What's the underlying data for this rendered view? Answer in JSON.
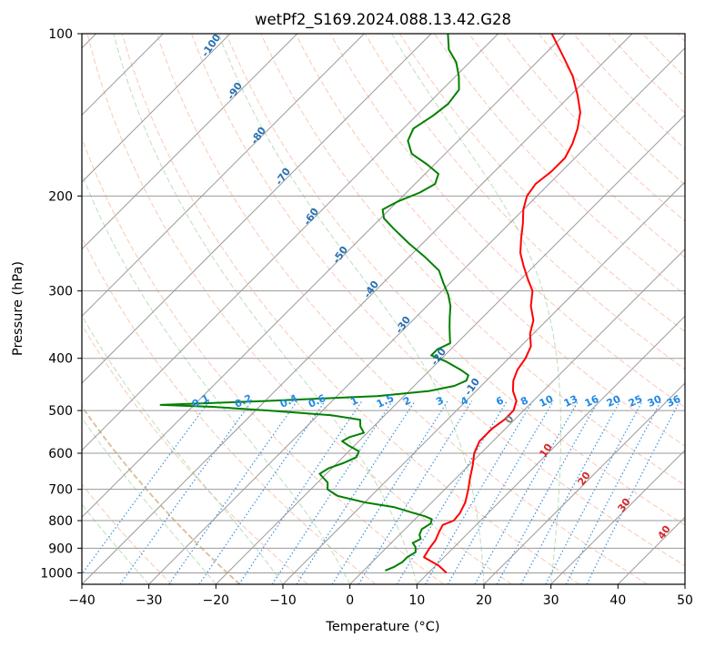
{
  "chart_data": {
    "type": "line",
    "title": "wetPf2_S169.2024.088.13.42.G28",
    "xlabel": "Temperature (°C)",
    "ylabel": "Pressure (hPa)",
    "xlim": [
      -40,
      50
    ],
    "ylim": [
      1050,
      100
    ],
    "y_scale": "log",
    "grid": true,
    "x_ticks": [
      -40,
      -30,
      -20,
      -10,
      0,
      10,
      20,
      30,
      40,
      50
    ],
    "y_ticks": [
      100,
      200,
      300,
      400,
      500,
      600,
      700,
      800,
      900,
      1000
    ],
    "skew_angle_deg": 45,
    "series": [
      {
        "color": "#ff0000",
        "points": [
          [
            12.7,
            1000
          ],
          [
            10.5,
            970
          ],
          [
            7.0,
            935
          ],
          [
            6.5,
            900
          ],
          [
            6.2,
            870
          ],
          [
            5.5,
            840
          ],
          [
            5.0,
            815
          ],
          [
            6.0,
            800
          ],
          [
            5.8,
            775
          ],
          [
            5.0,
            740
          ],
          [
            3.5,
            700
          ],
          [
            2.2,
            670
          ],
          [
            0.5,
            630
          ],
          [
            -1.0,
            600
          ],
          [
            -2.0,
            570
          ],
          [
            -2.0,
            540
          ],
          [
            -1.5,
            520
          ],
          [
            -1.5,
            500
          ],
          [
            -2.5,
            480
          ],
          [
            -4.5,
            460
          ],
          [
            -6.0,
            440
          ],
          [
            -7.0,
            420
          ],
          [
            -7.5,
            400
          ],
          [
            -8.5,
            380
          ],
          [
            -10.5,
            360
          ],
          [
            -12.0,
            340
          ],
          [
            -14.5,
            320
          ],
          [
            -16.5,
            300
          ],
          [
            -19.0,
            285
          ],
          [
            -21.5,
            270
          ],
          [
            -24.0,
            255
          ],
          [
            -26.0,
            240
          ],
          [
            -28.0,
            225
          ],
          [
            -30.0,
            212
          ],
          [
            -31.5,
            200
          ],
          [
            -32.0,
            190
          ],
          [
            -31.5,
            180
          ],
          [
            -31.5,
            170
          ],
          [
            -32.5,
            160
          ],
          [
            -34.0,
            150
          ],
          [
            -36.0,
            140
          ],
          [
            -39.0,
            130
          ],
          [
            -42.5,
            120
          ],
          [
            -47.0,
            110
          ],
          [
            -52.0,
            100
          ]
        ]
      },
      {
        "color": "#008000",
        "points": [
          [
            3.2,
            990
          ],
          [
            4.0,
            975
          ],
          [
            4.5,
            955
          ],
          [
            4.5,
            935
          ],
          [
            5.0,
            915
          ],
          [
            4.2,
            895
          ],
          [
            3.2,
            880
          ],
          [
            3.8,
            865
          ],
          [
            3.0,
            850
          ],
          [
            2.5,
            830
          ],
          [
            3.0,
            810
          ],
          [
            2.5,
            795
          ],
          [
            1.0,
            785
          ],
          [
            -2.0,
            770
          ],
          [
            -5.0,
            755
          ],
          [
            -10.0,
            740
          ],
          [
            -15.0,
            720
          ],
          [
            -17.5,
            700
          ],
          [
            -18.5,
            680
          ],
          [
            -20.0,
            665
          ],
          [
            -21.0,
            655
          ],
          [
            -20.5,
            640
          ],
          [
            -19.0,
            625
          ],
          [
            -18.0,
            610
          ],
          [
            -18.5,
            595
          ],
          [
            -21.0,
            580
          ],
          [
            -22.5,
            570
          ],
          [
            -22.0,
            560
          ],
          [
            -20.5,
            550
          ],
          [
            -22.0,
            535
          ],
          [
            -23.0,
            520
          ],
          [
            -28.0,
            510
          ],
          [
            -38.0,
            500
          ],
          [
            -47.0,
            492
          ],
          [
            -55.0,
            488
          ],
          [
            -40.0,
            480
          ],
          [
            -24.0,
            470
          ],
          [
            -17.0,
            460
          ],
          [
            -14.0,
            450
          ],
          [
            -13.0,
            440
          ],
          [
            -13.5,
            430
          ],
          [
            -15.5,
            420
          ],
          [
            -19.0,
            405
          ],
          [
            -22.0,
            395
          ],
          [
            -22.0,
            385
          ],
          [
            -21.0,
            375
          ],
          [
            -22.0,
            365
          ],
          [
            -23.5,
            350
          ],
          [
            -25.0,
            335
          ],
          [
            -26.5,
            320
          ],
          [
            -28.5,
            305
          ],
          [
            -31.0,
            290
          ],
          [
            -33.5,
            275
          ],
          [
            -37.5,
            260
          ],
          [
            -42.0,
            245
          ],
          [
            -46.5,
            230
          ],
          [
            -49.5,
            220
          ],
          [
            -51.0,
            212
          ],
          [
            -50.0,
            205
          ],
          [
            -48.0,
            197
          ],
          [
            -47.0,
            190
          ],
          [
            -48.0,
            182
          ],
          [
            -51.0,
            175
          ],
          [
            -55.0,
            167
          ],
          [
            -57.5,
            158
          ],
          [
            -58.5,
            150
          ],
          [
            -57.5,
            142
          ],
          [
            -57.0,
            135
          ],
          [
            -57.5,
            127
          ],
          [
            -59.5,
            120
          ],
          [
            -62.0,
            113
          ],
          [
            -65.0,
            107
          ],
          [
            -67.5,
            100
          ]
        ]
      }
    ],
    "dry_adiabat_labels": [
      "-100",
      "-90",
      "-80",
      "-70",
      "-60",
      "-50",
      "-40",
      "-30",
      "-20",
      "-10",
      "0",
      "10",
      "20",
      "30",
      "40"
    ],
    "mixing_ratio_labels": [
      "0.1",
      "0.2",
      "0.4",
      "0.6",
      "1",
      "1.5",
      "2",
      "3",
      "4",
      "6",
      "8",
      "10",
      "13",
      "16",
      "20",
      "25",
      "30",
      "36"
    ]
  }
}
